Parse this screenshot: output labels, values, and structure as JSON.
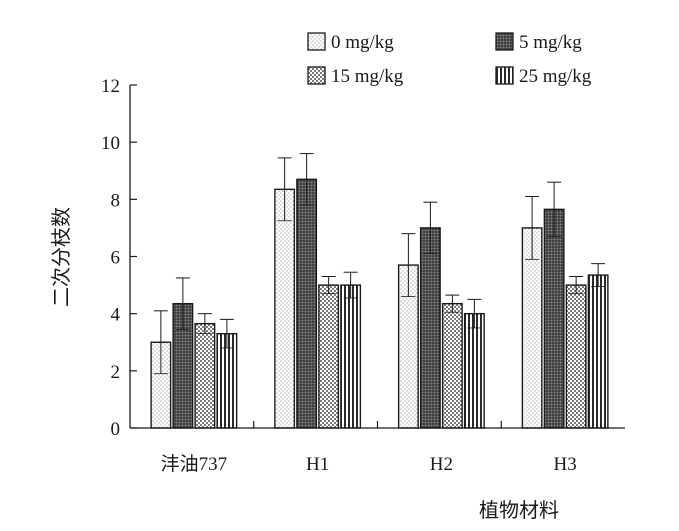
{
  "chart_data": {
    "type": "bar",
    "title": "",
    "xlabel": "植物材料",
    "ylabel": "二次分枝数",
    "ylim": [
      0,
      12
    ],
    "yticks": [
      0,
      2,
      4,
      6,
      8,
      10,
      12
    ],
    "categories": [
      "沣油737",
      "H1",
      "H2",
      "H3"
    ],
    "series": [
      {
        "name": "0 mg/kg",
        "pattern": "dots-light",
        "values": [
          3.0,
          8.35,
          5.7,
          7.0
        ],
        "errors": [
          1.1,
          1.1,
          1.1,
          1.1
        ]
      },
      {
        "name": "5 mg/kg",
        "pattern": "dots-dark",
        "values": [
          4.35,
          8.7,
          7.0,
          7.65
        ],
        "errors": [
          0.9,
          0.9,
          0.9,
          0.95
        ]
      },
      {
        "name": "15 mg/kg",
        "pattern": "checker",
        "values": [
          3.65,
          5.0,
          4.35,
          5.0
        ],
        "errors": [
          0.35,
          0.3,
          0.3,
          0.3
        ]
      },
      {
        "name": "25 mg/kg",
        "pattern": "vlines",
        "values": [
          3.3,
          5.0,
          4.0,
          5.35
        ],
        "errors": [
          0.5,
          0.45,
          0.5,
          0.4
        ]
      }
    ],
    "grid": false,
    "legend": "top-right",
    "colors": {
      "axis": "#1a1a1a",
      "bar_edge": "#1a1a1a",
      "background": "#ffffff"
    }
  }
}
